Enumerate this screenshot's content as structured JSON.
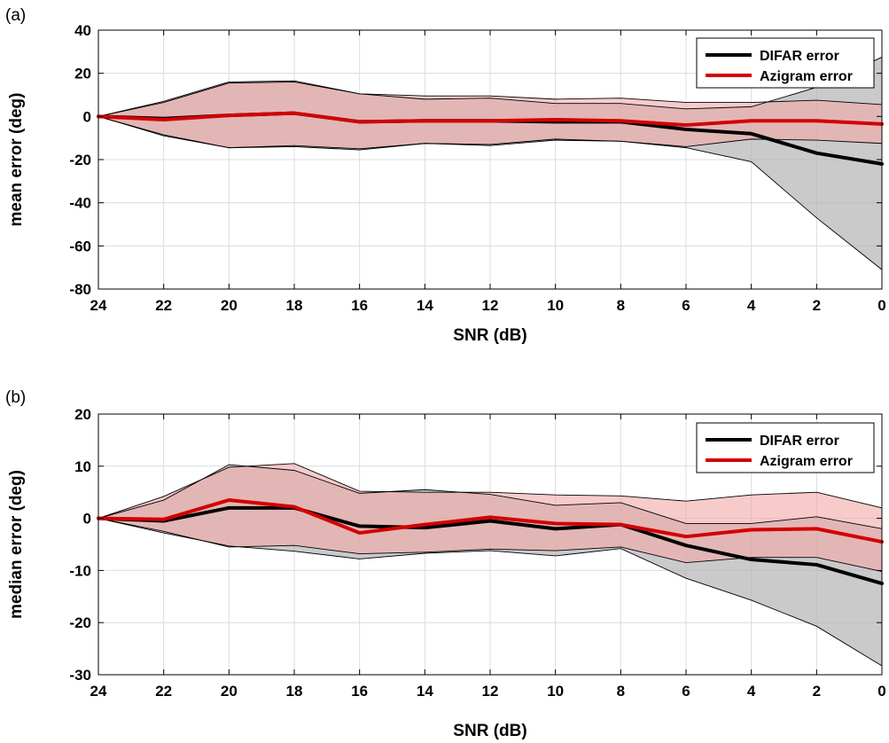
{
  "chart_data": [
    {
      "type": "line",
      "panel_label": "(a)",
      "xlabel": "SNR (dB)",
      "ylabel": "mean error (deg)",
      "x": [
        24,
        22,
        20,
        18,
        16,
        14,
        12,
        10,
        8,
        6,
        4,
        2,
        0
      ],
      "xlim": [
        24,
        0
      ],
      "ylim": [
        -80,
        40
      ],
      "xticks": [
        "24",
        "22",
        "20",
        "18",
        "16",
        "14",
        "12",
        "10",
        "8",
        "6",
        "4",
        "2",
        "0"
      ],
      "yticks": [
        "40",
        "20",
        "0",
        "-20",
        "-40",
        "-60",
        "-80"
      ],
      "xtick_values": [
        24,
        22,
        20,
        18,
        16,
        14,
        12,
        10,
        8,
        6,
        4,
        2,
        0
      ],
      "ytick_values": [
        40,
        20,
        0,
        -20,
        -40,
        -60,
        -80
      ],
      "grid": true,
      "legend_position": "top-right",
      "series": [
        {
          "name": "DIFAR error",
          "color": "#000000",
          "band_color": "#b4b4b4",
          "values": [
            0,
            -1,
            0.5,
            1.5,
            -2.5,
            -2,
            -2,
            -2.5,
            -2.5,
            -6,
            -8,
            -17,
            -22
          ],
          "upper": [
            0,
            6.5,
            15.5,
            16,
            10.5,
            8,
            8.5,
            6,
            6,
            3.5,
            4.5,
            13.5,
            27.5
          ],
          "lower": [
            0,
            -9,
            -14.5,
            -14,
            -15.5,
            -12.5,
            -13.5,
            -11,
            -11.5,
            -14.5,
            -21,
            -47,
            -71
          ]
        },
        {
          "name": "Azigram error",
          "color": "#d40000",
          "band_color": "#f3a8a8",
          "values": [
            0,
            -1.5,
            0.5,
            1.5,
            -2.5,
            -2,
            -2,
            -1.5,
            -2,
            -4,
            -2,
            -2,
            -3.5
          ],
          "upper": [
            0,
            7,
            16,
            16.5,
            10.5,
            9.5,
            9.5,
            8,
            8.5,
            6.5,
            6.5,
            7.5,
            5.5
          ],
          "lower": [
            0,
            -8.5,
            -14.5,
            -13.5,
            -15,
            -12.5,
            -13,
            -10.5,
            -11.5,
            -14,
            -10.5,
            -11,
            -12.5
          ]
        }
      ]
    },
    {
      "type": "line",
      "panel_label": "(b)",
      "xlabel": "SNR (dB)",
      "ylabel": "median error (deg)",
      "x": [
        24,
        22,
        20,
        18,
        16,
        14,
        12,
        10,
        8,
        6,
        4,
        2,
        0
      ],
      "xlim": [
        24,
        0
      ],
      "ylim": [
        -30,
        20
      ],
      "xticks": [
        "24",
        "22",
        "20",
        "18",
        "16",
        "14",
        "12",
        "10",
        "8",
        "6",
        "4",
        "2",
        "0"
      ],
      "yticks": [
        "20",
        "10",
        "0",
        "-10",
        "-20",
        "-30"
      ],
      "xtick_values": [
        24,
        22,
        20,
        18,
        16,
        14,
        12,
        10,
        8,
        6,
        4,
        2,
        0
      ],
      "ytick_values": [
        20,
        10,
        0,
        -10,
        -20,
        -30
      ],
      "grid": true,
      "legend_position": "top-right",
      "series": [
        {
          "name": "DIFAR error",
          "color": "#000000",
          "band_color": "#b4b4b4",
          "values": [
            0,
            -0.5,
            2,
            2,
            -1.5,
            -1.8,
            -0.5,
            -2,
            -1.2,
            -5.2,
            -7.9,
            -8.9,
            -12.5
          ],
          "upper": [
            0,
            3.5,
            10.3,
            9.2,
            4.8,
            5.5,
            4.6,
            2.5,
            3,
            -1,
            -1,
            0.3,
            -2
          ],
          "lower": [
            0,
            -2.8,
            -5.3,
            -6.3,
            -7.8,
            -6.7,
            -6.2,
            -7.2,
            -5.8,
            -11.5,
            -15.7,
            -20.7,
            -28.3
          ]
        },
        {
          "name": "Azigram error",
          "color": "#d40000",
          "band_color": "#f3a8a8",
          "values": [
            0,
            -0.2,
            3.5,
            2.2,
            -2.8,
            -1.2,
            0.2,
            -1,
            -1.2,
            -3.5,
            -2.2,
            -2,
            -4.5
          ],
          "upper": [
            0,
            4.2,
            9.8,
            10.5,
            5.2,
            5,
            5,
            4.5,
            4.3,
            3.3,
            4.5,
            5,
            2
          ],
          "lower": [
            0,
            -2.5,
            -5.5,
            -5.2,
            -6.8,
            -6.5,
            -5.9,
            -6.2,
            -5.5,
            -8.5,
            -7.5,
            -7.5,
            -10.2
          ]
        }
      ]
    }
  ]
}
